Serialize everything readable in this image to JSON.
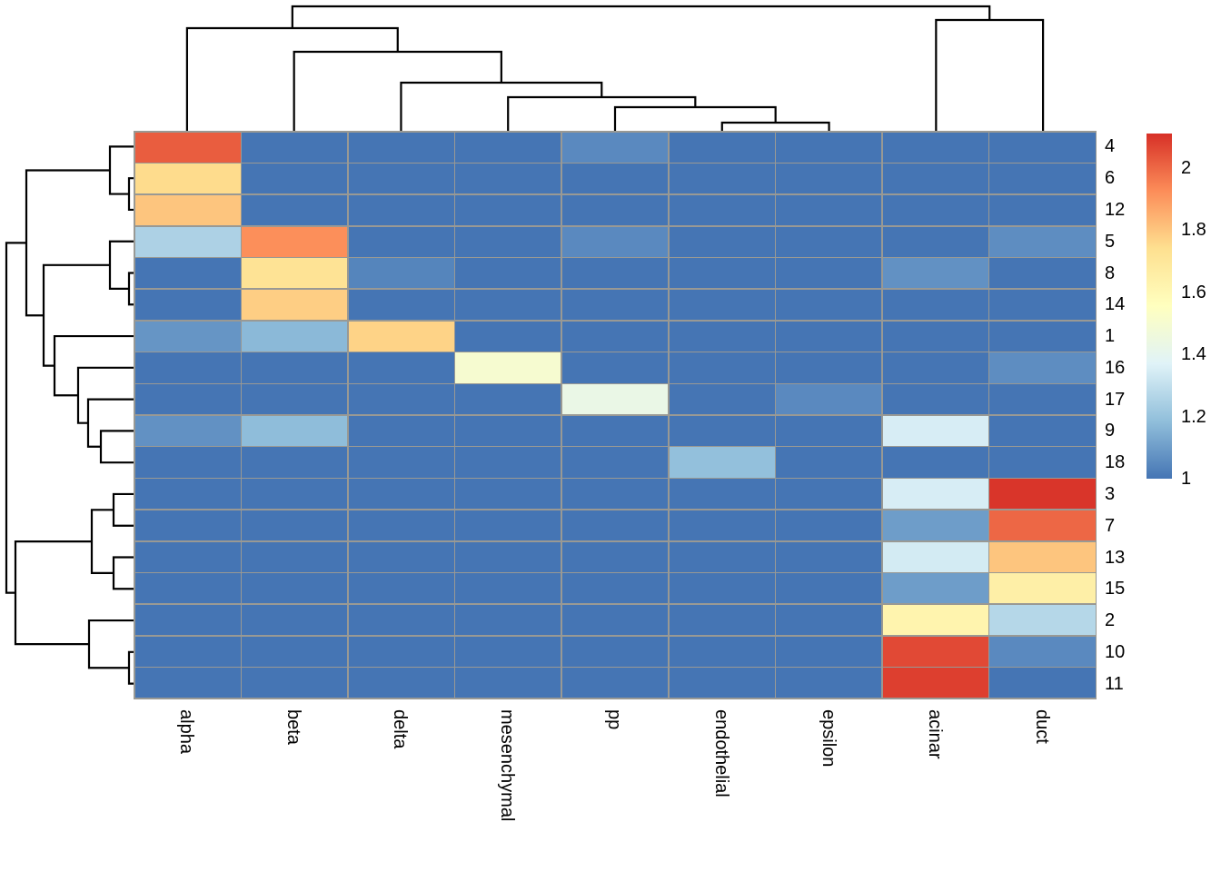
{
  "figure": {
    "background": "#FFFFFF",
    "grid_line_color": "#999994",
    "dendrogram_line_color": "#000000",
    "label_color": "#000000"
  },
  "chart_data": {
    "type": "heatmap",
    "title": "",
    "xlabel": "",
    "ylabel": "",
    "columns": [
      "alpha",
      "beta",
      "delta",
      "mesenchymal",
      "pp",
      "endothelial",
      "epsilon",
      "acinar",
      "duct"
    ],
    "rows": [
      "4",
      "6",
      "12",
      "5",
      "8",
      "14",
      "1",
      "16",
      "17",
      "9",
      "18",
      "3",
      "7",
      "13",
      "15",
      "2",
      "10",
      "11"
    ],
    "values": [
      [
        2.02,
        1,
        1,
        1,
        1.05,
        1,
        1,
        1,
        1
      ],
      [
        1.75,
        1,
        1,
        1,
        1,
        1,
        1,
        1,
        1
      ],
      [
        1.8,
        1,
        1,
        1,
        1,
        1,
        1,
        1,
        1
      ],
      [
        1.25,
        1.92,
        1,
        1,
        1.05,
        1,
        1,
        1,
        1.06
      ],
      [
        1,
        1.72,
        1.04,
        1,
        1,
        1,
        1,
        1.07,
        1
      ],
      [
        1,
        1.78,
        1,
        1,
        1,
        1,
        1,
        1,
        1
      ],
      [
        1.08,
        1.17,
        1.77,
        1,
        1,
        1,
        1,
        1,
        1
      ],
      [
        1,
        1,
        1,
        1.5,
        1,
        1,
        1,
        1,
        1.06
      ],
      [
        1,
        1,
        1,
        1,
        1.43,
        1,
        1.05,
        1,
        1
      ],
      [
        1.07,
        1.18,
        1,
        1,
        1,
        1,
        1,
        1.35,
        1
      ],
      [
        1,
        1,
        1,
        1,
        1,
        1.19,
        1,
        1,
        1
      ],
      [
        1,
        1,
        1,
        1,
        1,
        1,
        1,
        1.35,
        2.1
      ],
      [
        1,
        1,
        1,
        1,
        1,
        1,
        1,
        1.1,
        2.0
      ],
      [
        1,
        1,
        1,
        1,
        1,
        1,
        1,
        1.34,
        1.8
      ],
      [
        1,
        1,
        1,
        1,
        1,
        1,
        1,
        1.1,
        1.65
      ],
      [
        1,
        1,
        1,
        1,
        1,
        1,
        1,
        1.62,
        1.27
      ],
      [
        1,
        1,
        1,
        1,
        1,
        1,
        1,
        2.06,
        1.05
      ],
      [
        1,
        1,
        1,
        1,
        1,
        1,
        1,
        2.08,
        1
      ]
    ],
    "value_domain": [
      1,
      2.11
    ],
    "colormap": {
      "name": "RdYlBu reversed",
      "anchors": [
        [
          0,
          "#4575B4"
        ],
        [
          0.1667,
          "#91BFDB"
        ],
        [
          0.3333,
          "#E0F3F8"
        ],
        [
          0.5,
          "#FFFFBF"
        ],
        [
          0.6667,
          "#FEE090"
        ],
        [
          0.8333,
          "#FC8D59"
        ],
        [
          1,
          "#D73027"
        ]
      ]
    },
    "legend": {
      "position": "right",
      "ticks": [
        {
          "label": "2",
          "value": 2.0
        },
        {
          "label": "1.8",
          "value": 1.8
        },
        {
          "label": "1.6",
          "value": 1.6
        },
        {
          "label": "1.4",
          "value": 1.4
        },
        {
          "label": "1.2",
          "value": 1.2
        },
        {
          "label": "1",
          "value": 1.0
        }
      ]
    },
    "column_dendrogram": {
      "merges": [
        [
          "L5",
          "L6",
          9
        ],
        [
          "L4",
          "N0",
          26
        ],
        [
          "L3",
          "N1",
          37
        ],
        [
          "L2",
          "N2",
          53
        ],
        [
          "L1",
          "N3",
          87
        ],
        [
          "L0",
          "N4",
          113
        ],
        [
          "L7",
          "L8",
          122
        ],
        [
          "N5",
          "N6",
          137
        ]
      ]
    },
    "row_dendrogram": {
      "merges": [
        [
          "L1",
          "L2",
          5
        ],
        [
          "L0",
          "N0",
          26
        ],
        [
          "L4",
          "L5",
          5
        ],
        [
          "L3",
          "N2",
          26
        ],
        [
          "L9",
          "L10",
          36
        ],
        [
          "L8",
          "N4",
          50
        ],
        [
          "L7",
          "N5",
          61
        ],
        [
          "L6",
          "N6",
          87
        ],
        [
          "N3",
          "N7",
          99
        ],
        [
          "N1",
          "N8",
          118
        ],
        [
          "L11",
          "L12",
          22
        ],
        [
          "L13",
          "L14",
          22
        ],
        [
          "N10",
          "N11",
          46
        ],
        [
          "L16",
          "L17",
          5
        ],
        [
          "L15",
          "N13",
          49
        ],
        [
          "N12",
          "N14",
          130
        ],
        [
          "N9",
          "N15",
          140
        ]
      ]
    }
  }
}
